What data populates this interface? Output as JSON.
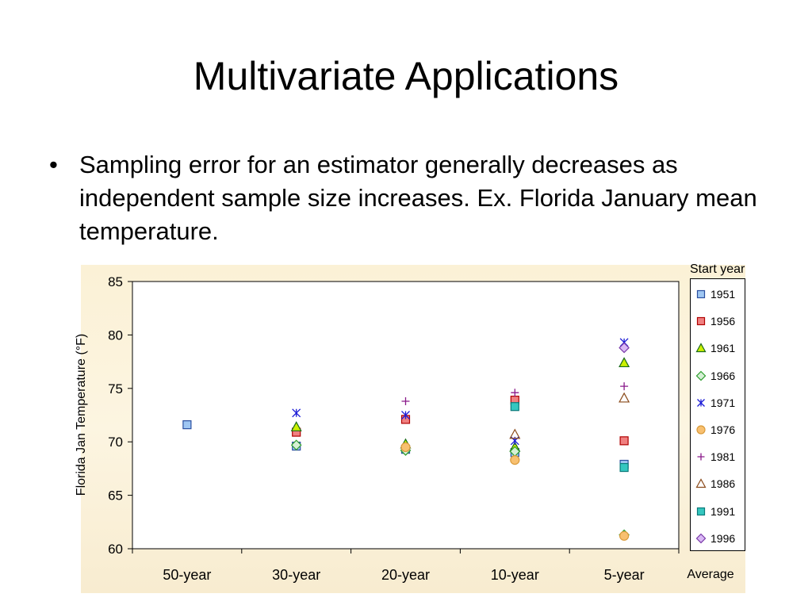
{
  "slide": {
    "title": "Multivariate Applications",
    "bullet_symbol": "•",
    "bullet": "Sampling error for an estimator generally decreases as independent sample size increases.  Ex. Florida January mean temperature."
  },
  "chart_data": {
    "type": "scatter",
    "title": "",
    "xlabel": "Average",
    "ylabel": "Florida Jan Temperature (°F)",
    "categories": [
      "50-year",
      "30-year",
      "20-year",
      "10-year",
      "5-year"
    ],
    "ylim": [
      60,
      85
    ],
    "yticks": [
      60,
      65,
      70,
      75,
      80,
      85
    ],
    "legend_title": "Start year",
    "legend_position": "right",
    "grid": false,
    "series": [
      {
        "name": "1951",
        "marker": "square",
        "fill": "#9fc7f3",
        "stroke": "#2a4fa0",
        "values": [
          71.6,
          69.6,
          69.3,
          69.0,
          67.9
        ]
      },
      {
        "name": "1956",
        "marker": "square",
        "fill": "#f08080",
        "stroke": "#b00000",
        "values": [
          null,
          70.9,
          72.1,
          73.9,
          70.1
        ]
      },
      {
        "name": "1961",
        "marker": "triangle",
        "fill": "#ccf000",
        "stroke": "#1a6b1a",
        "values": [
          null,
          71.4,
          69.8,
          69.5,
          77.4
        ]
      },
      {
        "name": "1966",
        "marker": "diamond",
        "fill": "#d6f0d6",
        "stroke": "#2e9e2e",
        "values": [
          null,
          69.7,
          69.2,
          69.1,
          61.3
        ]
      },
      {
        "name": "1971",
        "marker": "star",
        "fill": "none",
        "stroke": "#1a1ad6",
        "values": [
          null,
          72.7,
          72.5,
          70.1,
          79.3
        ]
      },
      {
        "name": "1976",
        "marker": "circle",
        "fill": "#f8c070",
        "stroke": "#d99a3a",
        "values": [
          null,
          null,
          69.5,
          68.3,
          61.2
        ]
      },
      {
        "name": "1981",
        "marker": "plus",
        "fill": "none",
        "stroke": "#8a1a8a",
        "values": [
          null,
          null,
          73.8,
          74.6,
          75.2
        ]
      },
      {
        "name": "1986",
        "marker": "triangle",
        "fill": "none",
        "stroke": "#8a4a1a",
        "values": [
          null,
          null,
          null,
          70.7,
          74.1
        ]
      },
      {
        "name": "1991",
        "marker": "square",
        "fill": "#35c7c0",
        "stroke": "#0a7a7a",
        "values": [
          null,
          null,
          null,
          73.3,
          67.6
        ]
      },
      {
        "name": "1996",
        "marker": "diamond",
        "fill": "#d9b8f5",
        "stroke": "#7a3aa8",
        "values": [
          null,
          null,
          null,
          null,
          78.8
        ]
      }
    ]
  }
}
